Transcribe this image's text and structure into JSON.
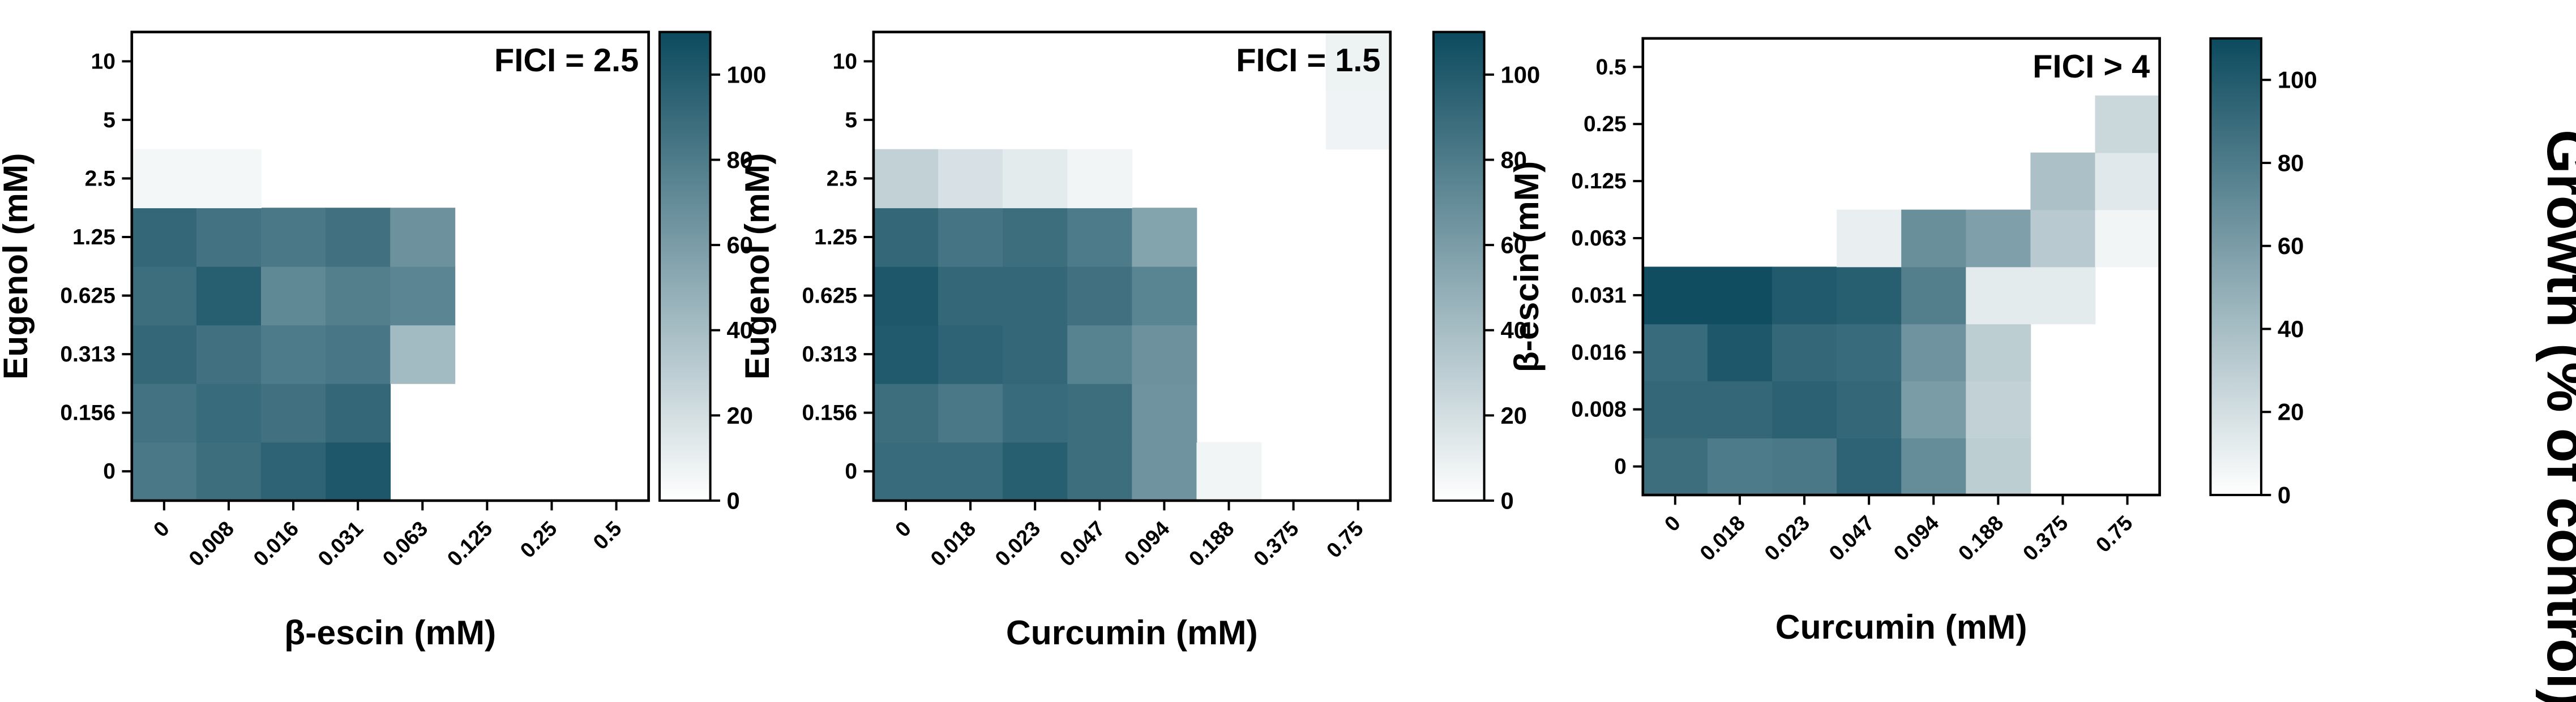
{
  "colorscale": {
    "low": "#ffffff",
    "high": "#0c4a5e",
    "domain": [
      0,
      110
    ],
    "ticks": [
      0,
      20,
      40,
      60,
      80,
      100
    ]
  },
  "colorbar_label": "Growth (% of control)",
  "chart_data": [
    {
      "type": "heatmap",
      "annotation": "FICI = 2.5",
      "xlabel": "β-escin (mM)",
      "ylabel": "Eugenol (mM)",
      "x_categories": [
        "0",
        "0.008",
        "0.016",
        "0.031",
        "0.063",
        "0.125",
        "0.25",
        "0.5"
      ],
      "y_categories": [
        "0",
        "0.156",
        "0.313",
        "0.625",
        "1.25",
        "2.5",
        "5",
        "10"
      ],
      "values": [
        [
          82,
          88,
          95,
          102,
          0,
          0,
          0,
          0
        ],
        [
          85,
          90,
          86,
          92,
          0,
          0,
          0,
          0
        ],
        [
          92,
          86,
          80,
          83,
          42,
          0,
          0,
          0
        ],
        [
          88,
          98,
          72,
          78,
          74,
          0,
          0,
          0
        ],
        [
          92,
          85,
          82,
          86,
          66,
          0,
          0,
          0
        ],
        [
          5,
          5,
          0,
          0,
          0,
          0,
          0,
          0
        ],
        [
          0,
          0,
          0,
          0,
          0,
          0,
          0,
          0
        ],
        [
          0,
          0,
          0,
          0,
          0,
          0,
          0,
          0
        ]
      ],
      "colorbar_ticks": [
        0,
        20,
        40,
        60,
        80,
        100
      ]
    },
    {
      "type": "heatmap",
      "annotation": "FICI = 1.5",
      "xlabel": "Curcumin (mM)",
      "ylabel": "Eugenol (mM)",
      "x_categories": [
        "0",
        "0.018",
        "0.023",
        "0.047",
        "0.094",
        "0.188",
        "0.375",
        "0.75"
      ],
      "y_categories": [
        "0",
        "0.156",
        "0.313",
        "0.625",
        "1.25",
        "2.5",
        "5",
        "10"
      ],
      "values": [
        [
          90,
          90,
          98,
          88,
          65,
          6,
          0,
          0
        ],
        [
          88,
          82,
          90,
          88,
          65,
          0,
          0,
          0
        ],
        [
          100,
          95,
          92,
          76,
          66,
          0,
          0,
          0
        ],
        [
          102,
          92,
          92,
          86,
          75,
          0,
          0,
          0
        ],
        [
          92,
          84,
          88,
          80,
          56,
          0,
          0,
          0
        ],
        [
          28,
          18,
          12,
          6,
          0,
          0,
          0,
          0
        ],
        [
          0,
          0,
          0,
          0,
          0,
          0,
          0,
          7
        ],
        [
          0,
          0,
          0,
          0,
          0,
          0,
          0,
          8
        ]
      ],
      "colorbar_ticks": [
        0,
        20,
        40,
        60,
        80,
        100
      ]
    },
    {
      "type": "heatmap",
      "annotation": "FICI > 4",
      "xlabel": "Curcumin (mM)",
      "ylabel": "β-escin (mM)",
      "x_categories": [
        "0",
        "0.018",
        "0.023",
        "0.047",
        "0.094",
        "0.188",
        "0.375",
        "0.75"
      ],
      "y_categories": [
        "0",
        "0.008",
        "0.016",
        "0.031",
        "0.063",
        "0.125",
        "0.25",
        "0.5"
      ],
      "values": [
        [
          88,
          80,
          82,
          95,
          70,
          30,
          0,
          0
        ],
        [
          92,
          92,
          96,
          92,
          60,
          28,
          0,
          0
        ],
        [
          90,
          102,
          92,
          90,
          65,
          30,
          0,
          0
        ],
        [
          108,
          108,
          100,
          98,
          78,
          12,
          12,
          0
        ],
        [
          0,
          0,
          0,
          10,
          68,
          58,
          32,
          6
        ],
        [
          0,
          0,
          0,
          0,
          0,
          0,
          38,
          14
        ],
        [
          0,
          0,
          0,
          0,
          0,
          0,
          0,
          24
        ],
        [
          0,
          0,
          0,
          0,
          0,
          0,
          0,
          0
        ]
      ],
      "colorbar_ticks": [
        0,
        20,
        40,
        60,
        80,
        100
      ]
    }
  ]
}
